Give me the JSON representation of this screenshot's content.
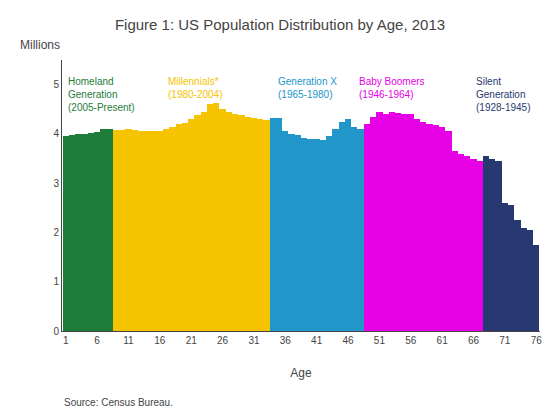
{
  "chart_data": {
    "type": "bar",
    "title": "Figure 1: US Population Distribution by Age, 2013",
    "ylabel": "Millions",
    "xlabel": "Age",
    "source": "Source: Census Bureau.",
    "x": [
      1,
      2,
      3,
      4,
      5,
      6,
      7,
      8,
      9,
      10,
      11,
      12,
      13,
      14,
      15,
      16,
      17,
      18,
      19,
      20,
      21,
      22,
      23,
      24,
      25,
      26,
      27,
      28,
      29,
      30,
      31,
      32,
      33,
      34,
      35,
      36,
      37,
      38,
      39,
      40,
      41,
      42,
      43,
      44,
      45,
      46,
      47,
      48,
      49,
      50,
      51,
      52,
      53,
      54,
      55,
      56,
      57,
      58,
      59,
      60,
      61,
      62,
      63,
      64,
      65,
      66,
      67,
      68,
      69,
      70,
      71,
      72,
      73,
      74,
      75,
      76
    ],
    "values": [
      3.95,
      3.98,
      4.0,
      4.0,
      4.02,
      4.03,
      4.1,
      4.1,
      4.08,
      4.08,
      4.1,
      4.07,
      4.05,
      4.05,
      4.05,
      4.05,
      4.1,
      4.15,
      4.2,
      4.22,
      4.3,
      4.38,
      4.45,
      4.6,
      4.62,
      4.5,
      4.45,
      4.4,
      4.38,
      4.35,
      4.33,
      4.3,
      4.28,
      4.32,
      4.33,
      4.05,
      4.0,
      3.98,
      3.92,
      3.9,
      3.9,
      3.88,
      3.95,
      4.1,
      4.25,
      4.3,
      4.15,
      4.1,
      4.2,
      4.35,
      4.45,
      4.4,
      4.45,
      4.42,
      4.4,
      4.4,
      4.3,
      4.25,
      4.2,
      4.18,
      4.15,
      4.05,
      3.65,
      3.6,
      3.55,
      3.5,
      3.45,
      3.55,
      3.5,
      3.45,
      2.6,
      2.55,
      2.25,
      2.1,
      2.05,
      1.75
    ],
    "colors": [
      "#1e7d3a",
      "#1e7d3a",
      "#1e7d3a",
      "#1e7d3a",
      "#1e7d3a",
      "#1e7d3a",
      "#1e7d3a",
      "#1e7d3a",
      "#f5c300",
      "#f5c300",
      "#f5c300",
      "#f5c300",
      "#f5c300",
      "#f5c300",
      "#f5c300",
      "#f5c300",
      "#f5c300",
      "#f5c300",
      "#f5c300",
      "#f5c300",
      "#f5c300",
      "#f5c300",
      "#f5c300",
      "#f5c300",
      "#f5c300",
      "#f5c300",
      "#f5c300",
      "#f5c300",
      "#f5c300",
      "#f5c300",
      "#f5c300",
      "#f5c300",
      "#f5c300",
      "#2196c8",
      "#2196c8",
      "#2196c8",
      "#2196c8",
      "#2196c8",
      "#2196c8",
      "#2196c8",
      "#2196c8",
      "#2196c8",
      "#2196c8",
      "#2196c8",
      "#2196c8",
      "#2196c8",
      "#2196c8",
      "#2196c8",
      "#e600e6",
      "#e600e6",
      "#e600e6",
      "#e600e6",
      "#e600e6",
      "#e600e6",
      "#e600e6",
      "#e600e6",
      "#e600e6",
      "#e600e6",
      "#e600e6",
      "#e600e6",
      "#e600e6",
      "#e600e6",
      "#e600e6",
      "#e600e6",
      "#e600e6",
      "#e600e6",
      "#e600e6",
      "#283870",
      "#283870",
      "#283870",
      "#283870",
      "#283870",
      "#283870",
      "#283870",
      "#283870",
      "#283870"
    ],
    "annotations": [
      {
        "text": "Homeland\nGeneration\n(2005-Present)",
        "color": "#1e7d3a"
      },
      {
        "text": "Millennials*\n(1980-2004)",
        "color": "#f5c300"
      },
      {
        "text": "Generation X\n(1965-1980)",
        "color": "#2196c8"
      },
      {
        "text": "Baby Boomers\n(1946-1964)",
        "color": "#e600e6"
      },
      {
        "text": "Silent\nGeneration\n(1928-1945)",
        "color": "#283870"
      }
    ],
    "xlim": [
      0.4,
      76.6
    ],
    "xticks": [
      1,
      6,
      11,
      16,
      21,
      26,
      31,
      36,
      41,
      46,
      51,
      56,
      61,
      66,
      71,
      76
    ],
    "ylim": [
      0,
      5.5
    ],
    "yticks": [
      0,
      1,
      2,
      3,
      4,
      5
    ],
    "grid": false
  }
}
